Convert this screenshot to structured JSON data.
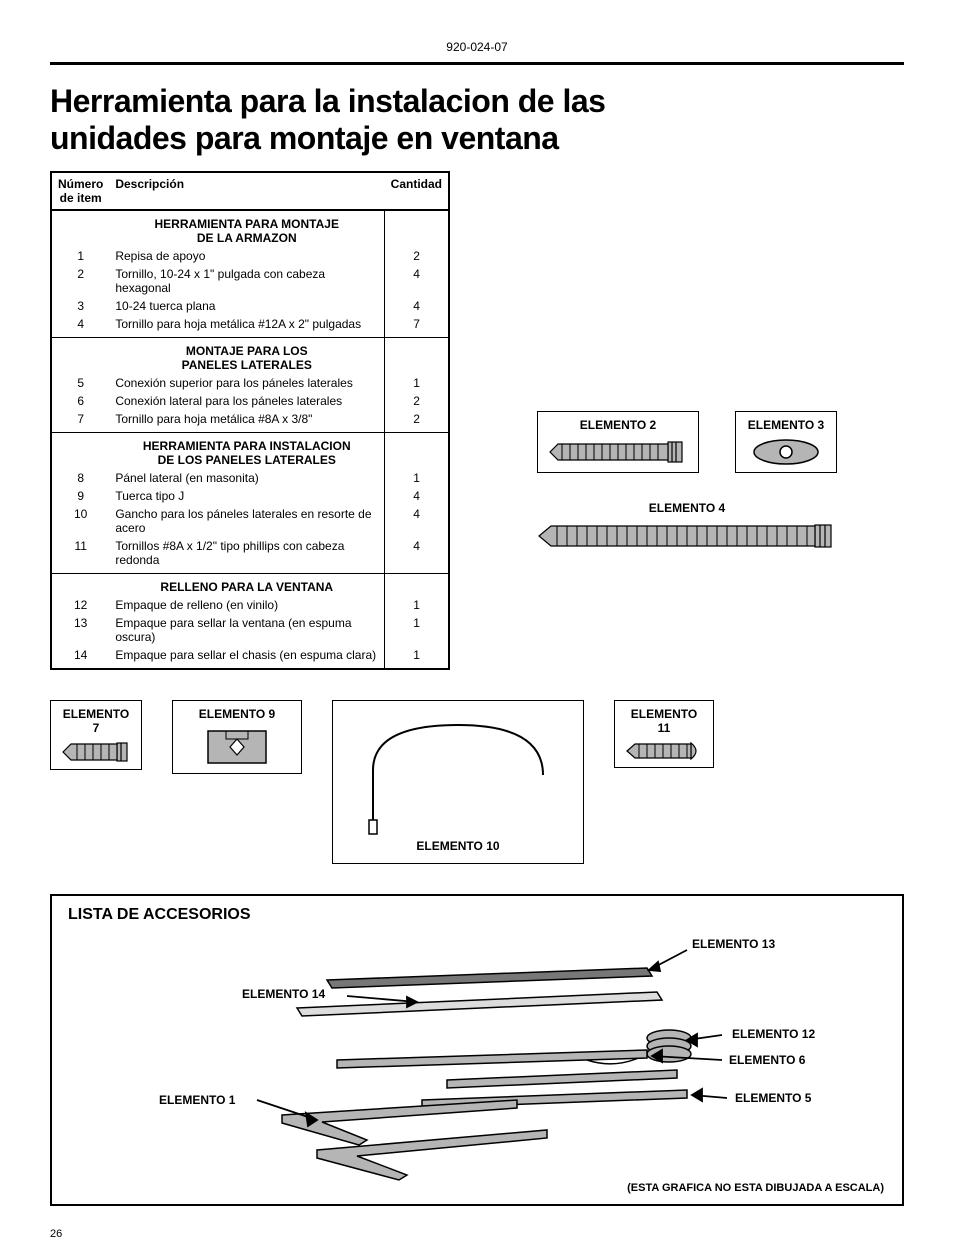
{
  "doc_code": "920-024-07",
  "page_number": "26",
  "main_title": "Herramienta para la instalacion de las unidades  para montaje en ventana",
  "table": {
    "head": {
      "col1": "Número de item",
      "col2": "Descripción",
      "col3": "Cantidad"
    },
    "sections": [
      {
        "heading_l1": "HERRAMIENTA PARA MONTAJE",
        "heading_l2": "DE LA ARMAZON",
        "rows": [
          {
            "num": "1",
            "desc": "Repisa de apoyo",
            "qty": "2"
          },
          {
            "num": "2",
            "desc": "Tornillo, 10-24 x 1\" pulgada con cabeza hexagonal",
            "qty": "4"
          },
          {
            "num": "3",
            "desc": "10-24 tuerca plana",
            "qty": "4"
          },
          {
            "num": "4",
            "desc": "Tornillo para hoja metálica #12A x 2\" pulgadas",
            "qty": "7"
          }
        ]
      },
      {
        "heading_l1": "MONTAJE PARA LOS",
        "heading_l2": "PANELES LATERALES",
        "rows": [
          {
            "num": "5",
            "desc": "Conexión superior para los páneles laterales",
            "qty": "1"
          },
          {
            "num": "6",
            "desc": "Conexión lateral para los páneles laterales",
            "qty": "2"
          },
          {
            "num": "7",
            "desc": "Tornillo para hoja metálica #8A x 3/8\"",
            "qty": "2"
          }
        ]
      },
      {
        "heading_l1": "HERRAMIENTA PARA INSTALACION",
        "heading_l2": "DE LOS PANELES LATERALES",
        "rows": [
          {
            "num": "8",
            "desc": "Pánel lateral (en  masonita)",
            "qty": "1"
          },
          {
            "num": "9",
            "desc": "Tuerca tipo J",
            "qty": "4"
          },
          {
            "num": "10",
            "desc": "Gancho para los páneles laterales en resorte de acero",
            "qty": "4"
          },
          {
            "num": "11",
            "desc": "Tornillos #8A x 1/2\" tipo phillips con cabeza redonda",
            "qty": "4"
          }
        ]
      },
      {
        "heading_l1": "RELLENO PARA LA VENTANA",
        "heading_l2": "",
        "rows": [
          {
            "num": "12",
            "desc": "Empaque de relleno (en vinilo)",
            "qty": "1"
          },
          {
            "num": "13",
            "desc": "Empaque para sellar la ventana (en espuma oscura)",
            "qty": "1"
          },
          {
            "num": "14",
            "desc": "Empaque para sellar el chasis (en espuma clara)",
            "qty": "1"
          }
        ]
      }
    ]
  },
  "elements": {
    "e2": "ELEMENTO 2",
    "e3": "ELEMENTO 3",
    "e4": "ELEMENTO 4",
    "e7_l1": "ELEMENTO",
    "e7_l2": "7",
    "e9": "ELEMENTO 9",
    "e10": "ELEMENTO 10",
    "e11_l1": "ELEMENTO",
    "e11_l2": "11",
    "e1": "ELEMENTO 1",
    "e5": "ELEMENTO 5",
    "e6": "ELEMENTO 6",
    "e12": "ELEMENTO 12",
    "e13": "ELEMENTO 13",
    "e14": "ELEMENTO 14"
  },
  "accessory_title": "LISTA DE ACCESORIOS",
  "scale_note": "(ESTA GRAFICA NO ESTA DIBUJADA A ESCALA)",
  "style": {
    "type": "document",
    "page_bg": "#ffffff",
    "text_color": "#000000",
    "gray_fill": "#b5b5b5",
    "stroke": "#000000",
    "title_fontsize": 32,
    "body_fontsize": 12,
    "label_fontsize": 12,
    "border_width": 2,
    "thin_border_width": 1.5
  }
}
